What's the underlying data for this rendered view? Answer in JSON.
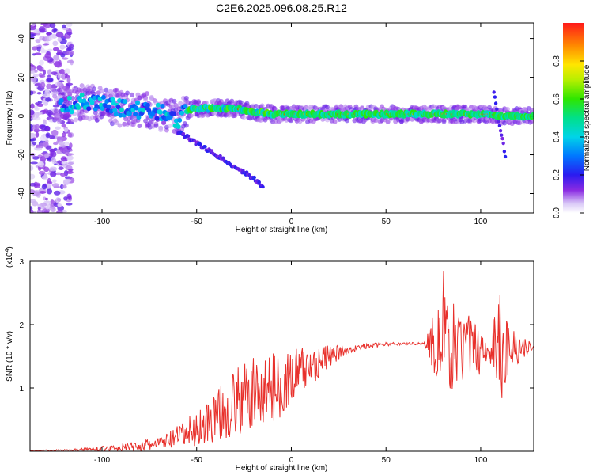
{
  "title": "C2E6.2025.096.08.25.R12",
  "chart_data": [
    {
      "type": "heatmap",
      "xlabel": "Height of straight line (km)",
      "ylabel": "Frequency (Hz)",
      "xlim": [
        -138,
        128
      ],
      "ylim": [
        -50,
        48
      ],
      "x_ticks": [
        -100,
        -50,
        0,
        50,
        100
      ],
      "y_ticks": [
        -40,
        -20,
        0,
        20,
        40
      ],
      "colorbar": {
        "label": "Normalized spectral amplitude",
        "range": [
          0,
          1
        ],
        "ticks": [
          0.0,
          0.2,
          0.4,
          0.6,
          0.8
        ],
        "tick_labels": [
          "0.0",
          "0.2",
          "0.4",
          "0.6",
          "0.8"
        ]
      },
      "ridge_frequency": {
        "x": [
          -120,
          -110,
          -100,
          -90,
          -80,
          -70,
          -65,
          -60,
          -55,
          -50,
          -40,
          -30,
          -20,
          -10,
          0,
          10,
          20,
          40,
          60,
          80,
          100,
          105,
          110,
          120,
          128
        ],
        "y": [
          5,
          7,
          6,
          4,
          3,
          2,
          0,
          -2,
          3,
          4,
          4,
          4,
          2,
          1,
          1,
          1,
          1,
          1,
          1,
          1,
          1,
          1,
          0,
          0,
          0
        ]
      },
      "branch_tracks": [
        {
          "x": [
            -60,
            -50,
            -40,
            -30,
            -20,
            -15
          ],
          "y": [
            -8,
            -14,
            -20,
            -26,
            -32,
            -37
          ]
        },
        {
          "x": [
            107,
            109,
            111,
            113
          ],
          "y": [
            12,
            0,
            -10,
            -20
          ]
        }
      ]
    },
    {
      "type": "line",
      "xlabel": "Height of straight line (km)",
      "ylabel": "SNR (10 * v/v)",
      "multiplier": "(x10",
      "multiplier_exp": "4",
      "multiplier_close": ")",
      "xlim": [
        -138,
        128
      ],
      "ylim": [
        0,
        3
      ],
      "x_ticks": [
        -100,
        -50,
        0,
        50,
        100
      ],
      "y_ticks": [
        1,
        2,
        3
      ],
      "color": "#e8302b",
      "envelope": {
        "x": [
          -138,
          -120,
          -100,
          -90,
          -80,
          -70,
          -60,
          -50,
          -40,
          -30,
          -20,
          -10,
          0,
          10,
          20,
          30,
          40,
          50,
          60,
          70,
          78,
          90,
          100,
          105,
          110,
          115,
          128
        ],
        "mean": [
          0.01,
          0.02,
          0.04,
          0.06,
          0.08,
          0.12,
          0.22,
          0.35,
          0.55,
          0.75,
          0.9,
          1.0,
          1.15,
          1.35,
          1.5,
          1.6,
          1.66,
          1.69,
          1.7,
          1.7,
          1.7,
          1.65,
          1.62,
          1.6,
          1.62,
          1.64,
          1.65
        ],
        "amplitude": [
          0.005,
          0.01,
          0.04,
          0.06,
          0.08,
          0.1,
          0.18,
          0.3,
          0.4,
          0.55,
          0.6,
          0.55,
          0.5,
          0.35,
          0.18,
          0.06,
          0.04,
          0.03,
          0.02,
          0.02,
          0.8,
          0.6,
          0.4,
          0.2,
          1.2,
          0.4,
          0.02
        ]
      }
    }
  ]
}
